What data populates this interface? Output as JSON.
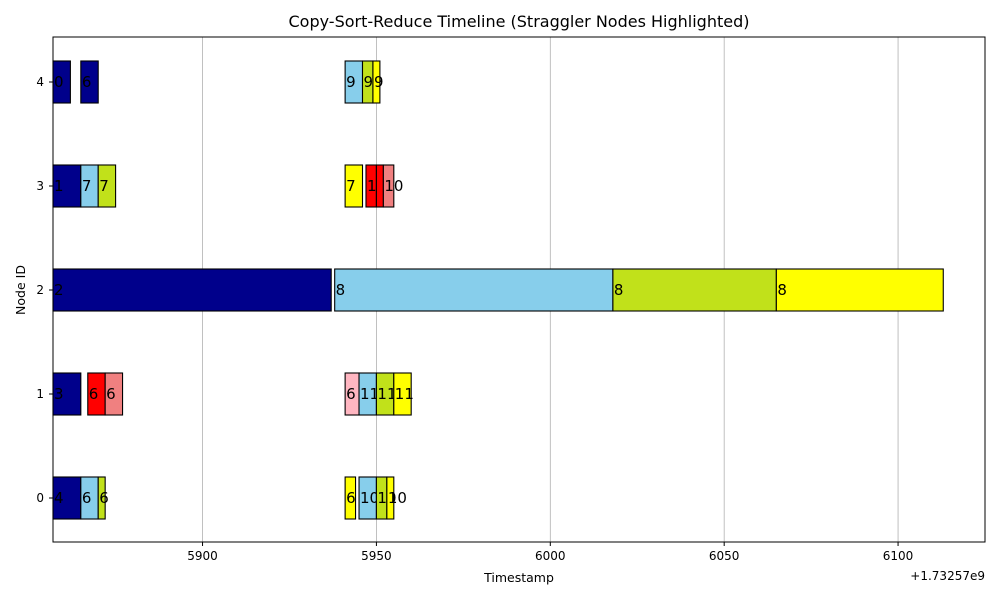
{
  "chart_data": {
    "type": "bar",
    "orientation": "horizontal",
    "title": "Copy-Sort-Reduce Timeline (Straggler Nodes Highlighted)",
    "xlabel": "Timestamp",
    "ylabel": "Node ID",
    "x_offset_label": "+1.73257e9",
    "xlim": [
      5857,
      6125
    ],
    "x_ticks": [
      5900,
      5950,
      6000,
      6050,
      6100
    ],
    "x_tick_labels": [
      "5900",
      "5950",
      "6000",
      "6050",
      "6100"
    ],
    "y_categories": [
      "0",
      "1",
      "2",
      "3",
      "4"
    ],
    "straggler_nodes": [
      "2"
    ],
    "straggler_color": "#ff0000",
    "grid": "x-only",
    "stage_colors": {
      "navy": "#00008b",
      "skyblue": "#87ceeb",
      "lime": "#c1e11a",
      "yellow": "#ffff00",
      "red": "#ff0000",
      "lightcoral": "#f08080",
      "pink": "#ffb6c1"
    },
    "bars": [
      {
        "node": "4",
        "start": 5857,
        "end": 5862,
        "color": "navy",
        "label": "0"
      },
      {
        "node": "4",
        "start": 5865,
        "end": 5870,
        "color": "navy",
        "label": "6"
      },
      {
        "node": "4",
        "start": 5941,
        "end": 5946,
        "color": "skyblue",
        "label": "9"
      },
      {
        "node": "4",
        "start": 5946,
        "end": 5949,
        "color": "lime",
        "label": "9"
      },
      {
        "node": "4",
        "start": 5949,
        "end": 5951,
        "color": "yellow",
        "label": "9"
      },
      {
        "node": "3",
        "start": 5857,
        "end": 5865,
        "color": "navy",
        "label": "1"
      },
      {
        "node": "3",
        "start": 5865,
        "end": 5870,
        "color": "skyblue",
        "label": "7"
      },
      {
        "node": "3",
        "start": 5870,
        "end": 5875,
        "color": "lime",
        "label": "7"
      },
      {
        "node": "3",
        "start": 5941,
        "end": 5946,
        "color": "yellow",
        "label": "7"
      },
      {
        "node": "3",
        "start": 5947,
        "end": 5950,
        "color": "red",
        "label": "10"
      },
      {
        "node": "3",
        "start": 5950,
        "end": 5952,
        "color": "red",
        "label": ""
      },
      {
        "node": "3",
        "start": 5952,
        "end": 5955,
        "color": "lightcoral",
        "label": "10"
      },
      {
        "node": "2",
        "start": 5857,
        "end": 5937,
        "color": "navy",
        "label": "2"
      },
      {
        "node": "2",
        "start": 5938,
        "end": 6018,
        "color": "skyblue",
        "label": "8"
      },
      {
        "node": "2",
        "start": 6018,
        "end": 6065,
        "color": "lime",
        "label": "8"
      },
      {
        "node": "2",
        "start": 6065,
        "end": 6113,
        "color": "yellow",
        "label": "8"
      },
      {
        "node": "1",
        "start": 5857,
        "end": 5865,
        "color": "navy",
        "label": "3"
      },
      {
        "node": "1",
        "start": 5867,
        "end": 5872,
        "color": "red",
        "label": "6"
      },
      {
        "node": "1",
        "start": 5872,
        "end": 5877,
        "color": "lightcoral",
        "label": "6"
      },
      {
        "node": "1",
        "start": 5941,
        "end": 5945,
        "color": "pink",
        "label": "6"
      },
      {
        "node": "1",
        "start": 5945,
        "end": 5950,
        "color": "skyblue",
        "label": "11"
      },
      {
        "node": "1",
        "start": 5950,
        "end": 5955,
        "color": "lime",
        "label": "11"
      },
      {
        "node": "1",
        "start": 5955,
        "end": 5960,
        "color": "yellow",
        "label": "11"
      },
      {
        "node": "0",
        "start": 5857,
        "end": 5865,
        "color": "navy",
        "label": "4"
      },
      {
        "node": "0",
        "start": 5865,
        "end": 5870,
        "color": "skyblue",
        "label": "6"
      },
      {
        "node": "0",
        "start": 5870,
        "end": 5872,
        "color": "lime",
        "label": "6"
      },
      {
        "node": "0",
        "start": 5941,
        "end": 5944,
        "color": "yellow",
        "label": "6"
      },
      {
        "node": "0",
        "start": 5945,
        "end": 5950,
        "color": "skyblue",
        "label": "10"
      },
      {
        "node": "0",
        "start": 5950,
        "end": 5953,
        "color": "lime",
        "label": "10"
      },
      {
        "node": "0",
        "start": 5953,
        "end": 5955,
        "color": "yellow",
        "label": "10"
      }
    ]
  }
}
